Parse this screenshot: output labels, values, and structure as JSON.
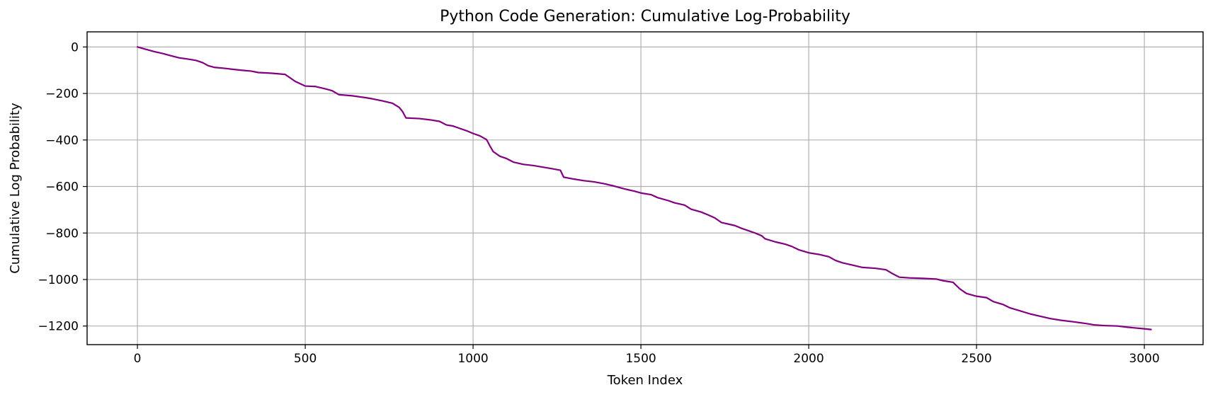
{
  "chart_data": {
    "type": "line",
    "title": "Python Code Generation: Cumulative Log-Probability",
    "xlabel": "Token Index",
    "ylabel": "Cumulative Log Probability",
    "xlim": [
      -150,
      3175
    ],
    "ylim": [
      -1280,
      65
    ],
    "xticks": [
      0,
      500,
      1000,
      1500,
      2000,
      2500,
      3000
    ],
    "xtick_labels": [
      "0",
      "500",
      "1000",
      "1500",
      "2000",
      "2500",
      "3000"
    ],
    "yticks": [
      0,
      -200,
      -400,
      -600,
      -800,
      -1000,
      -1200
    ],
    "ytick_labels": [
      "0",
      "−200",
      "−400",
      "−600",
      "−800",
      "−1000",
      "−1200"
    ],
    "grid": true,
    "line_color": "#800080",
    "series": [
      {
        "x": [
          0,
          25,
          50,
          75,
          100,
          125,
          150,
          175,
          195,
          210,
          230,
          260,
          290,
          310,
          340,
          360,
          400,
          440,
          470,
          500,
          530,
          560,
          580,
          600,
          640,
          680,
          700,
          730,
          760,
          780,
          790,
          800,
          840,
          870,
          900,
          920,
          940,
          960,
          980,
          1000,
          1020,
          1040,
          1050,
          1060,
          1080,
          1100,
          1120,
          1150,
          1180,
          1200,
          1230,
          1260,
          1270,
          1300,
          1330,
          1360,
          1390,
          1420,
          1450,
          1480,
          1500,
          1530,
          1550,
          1580,
          1600,
          1630,
          1650,
          1680,
          1700,
          1720,
          1740,
          1780,
          1800,
          1820,
          1840,
          1860,
          1870,
          1900,
          1930,
          1950,
          1970,
          2000,
          2030,
          2060,
          2080,
          2100,
          2130,
          2160,
          2200,
          2230,
          2250,
          2270,
          2300,
          2340,
          2380,
          2400,
          2430,
          2450,
          2470,
          2500,
          2530,
          2550,
          2580,
          2600,
          2630,
          2660,
          2690,
          2720,
          2750,
          2790,
          2830,
          2850,
          2880,
          2920,
          2950,
          2970,
          3000,
          3020
        ],
        "y": [
          0,
          -10,
          -20,
          -28,
          -38,
          -47,
          -52,
          -58,
          -68,
          -80,
          -88,
          -92,
          -97,
          -100,
          -104,
          -110,
          -113,
          -118,
          -148,
          -168,
          -170,
          -180,
          -188,
          -205,
          -210,
          -218,
          -223,
          -232,
          -242,
          -260,
          -278,
          -305,
          -308,
          -313,
          -320,
          -335,
          -340,
          -350,
          -360,
          -372,
          -382,
          -398,
          -425,
          -450,
          -470,
          -480,
          -495,
          -505,
          -510,
          -515,
          -522,
          -530,
          -560,
          -568,
          -575,
          -580,
          -588,
          -598,
          -610,
          -620,
          -628,
          -635,
          -648,
          -660,
          -670,
          -680,
          -698,
          -710,
          -722,
          -735,
          -755,
          -768,
          -780,
          -790,
          -800,
          -812,
          -825,
          -838,
          -848,
          -858,
          -872,
          -885,
          -892,
          -902,
          -918,
          -928,
          -938,
          -948,
          -952,
          -958,
          -975,
          -990,
          -993,
          -995,
          -998,
          -1005,
          -1012,
          -1040,
          -1060,
          -1072,
          -1078,
          -1095,
          -1108,
          -1122,
          -1135,
          -1148,
          -1158,
          -1168,
          -1175,
          -1182,
          -1190,
          -1195,
          -1198,
          -1200,
          -1205,
          -1208,
          -1212,
          -1215
        ]
      }
    ]
  }
}
